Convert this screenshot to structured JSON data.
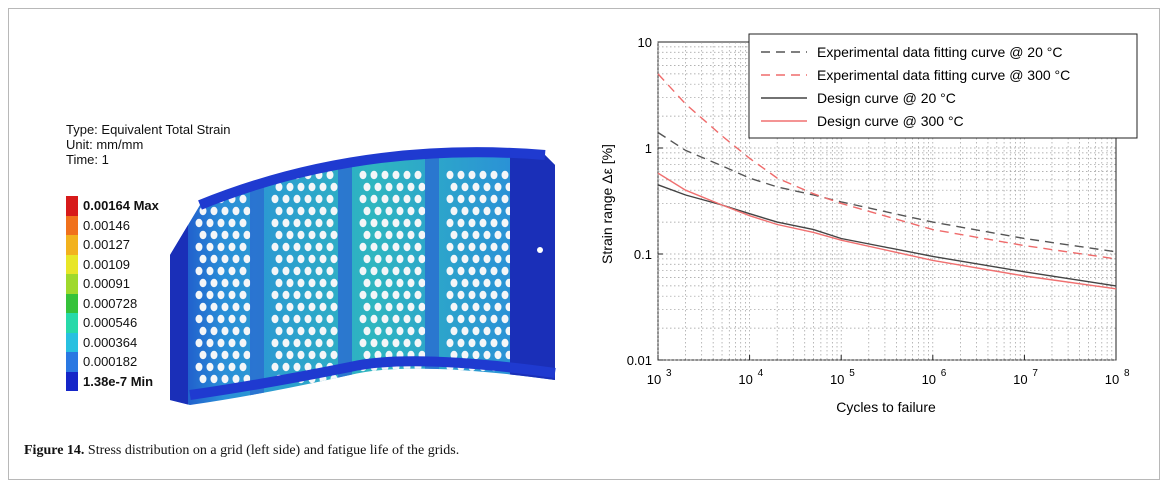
{
  "fe_legend": {
    "type_line": "Type: Equivalent Total Strain",
    "unit_line": "Unit: mm/mm",
    "time_line": "Time: 1",
    "entries": [
      {
        "label": "0.00164 Max",
        "color": "#d71a1a",
        "bold": true
      },
      {
        "label": "0.00146",
        "color": "#f0711c",
        "bold": false
      },
      {
        "label": "0.00127",
        "color": "#f2b21e",
        "bold": false
      },
      {
        "label": "0.00109",
        "color": "#e8e627",
        "bold": false
      },
      {
        "label": "0.00091",
        "color": "#9fd92c",
        "bold": false
      },
      {
        "label": "0.000728",
        "color": "#35c23a",
        "bold": false
      },
      {
        "label": "0.000546",
        "color": "#27d9a9",
        "bold": false
      },
      {
        "label": "0.000364",
        "color": "#28c0e0",
        "bold": false
      },
      {
        "label": "0.000182",
        "color": "#2a78e2",
        "bold": false
      },
      {
        "label": "1.38e-7 Min",
        "color": "#1526c8",
        "bold": true
      }
    ]
  },
  "caption": {
    "label": "Figure 14.",
    "text": " Stress distribution on a grid (left side) and fatigue life of the grids."
  },
  "chart_data": {
    "type": "line",
    "xlabel": "Cycles to failure",
    "ylabel": "Strain range Δε [%]",
    "xscale": "log",
    "yscale": "log",
    "xlim": [
      1000,
      100000000
    ],
    "ylim": [
      0.01,
      10
    ],
    "x_ticks": [
      {
        "base": "10",
        "exp": "3"
      },
      {
        "base": "10",
        "exp": "4"
      },
      {
        "base": "10",
        "exp": "5"
      },
      {
        "base": "10",
        "exp": "6"
      },
      {
        "base": "10",
        "exp": "7"
      },
      {
        "base": "10",
        "exp": "8"
      }
    ],
    "y_ticks": [
      "0.01",
      "0.1",
      "1",
      "10"
    ],
    "grid": true,
    "legend_position": "top-right",
    "series": [
      {
        "name": "Experimental data fitting curve @ 20 °C",
        "color": "#555555",
        "dash": "dashed",
        "x": [
          1000,
          2000,
          5000,
          10000,
          20000,
          50000,
          100000,
          1000000,
          10000000,
          100000000
        ],
        "y": [
          1.4,
          0.95,
          0.68,
          0.52,
          0.43,
          0.36,
          0.31,
          0.2,
          0.14,
          0.105
        ]
      },
      {
        "name": "Experimental data fitting curve @ 300 °C",
        "color": "#ef6b6b",
        "dash": "dashed",
        "x": [
          1000,
          2000,
          5000,
          10000,
          20000,
          50000,
          100000,
          1000000,
          10000000,
          100000000
        ],
        "y": [
          5.0,
          2.6,
          1.3,
          0.8,
          0.52,
          0.37,
          0.3,
          0.17,
          0.12,
          0.09
        ]
      },
      {
        "name": "Design curve @ 20 °C",
        "color": "#444444",
        "dash": "solid",
        "x": [
          1000,
          2000,
          5000,
          10000,
          20000,
          50000,
          100000,
          1000000,
          10000000,
          100000000
        ],
        "y": [
          0.45,
          0.36,
          0.29,
          0.24,
          0.2,
          0.17,
          0.14,
          0.095,
          0.068,
          0.05
        ]
      },
      {
        "name": "Design curve @ 300 °C",
        "color": "#f07070",
        "dash": "solid",
        "x": [
          1000,
          2000,
          5000,
          10000,
          20000,
          50000,
          100000,
          1000000,
          10000000,
          100000000
        ],
        "y": [
          0.58,
          0.4,
          0.29,
          0.23,
          0.19,
          0.16,
          0.135,
          0.087,
          0.062,
          0.047
        ]
      }
    ]
  }
}
